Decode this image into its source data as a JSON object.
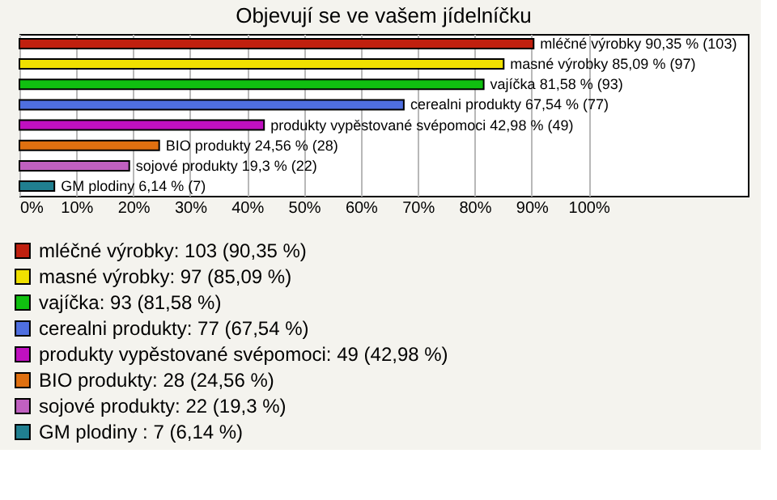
{
  "chart_data": {
    "type": "bar",
    "orientation": "horizontal",
    "title": "Objevují se ve vašem jídelníčku",
    "categories": [
      null,
      null,
      null,
      null,
      null,
      null,
      null,
      null
    ],
    "series": [
      {
        "name": "mléčné výrobky: 103 (90,35 %)",
        "color": "#c0200f",
        "values": [
          90.35,
          null,
          null,
          null,
          null,
          null,
          null,
          null
        ],
        "value_labels": [
          "mléčné výrobky 90,35 % (103)",
          null,
          null,
          null,
          null,
          null,
          null,
          null
        ]
      },
      {
        "name": "masné výrobky: 97 (85,09 %)",
        "color": "#f0e000",
        "values": [
          null,
          85.09,
          null,
          null,
          null,
          null,
          null,
          null
        ],
        "value_labels": [
          null,
          "masné výrobky 85,09 % (97)",
          null,
          null,
          null,
          null,
          null,
          null
        ]
      },
      {
        "name": "vajíčka: 93 (81,58 %)",
        "color": "#10c010",
        "values": [
          null,
          null,
          81.58,
          null,
          null,
          null,
          null,
          null
        ],
        "value_labels": [
          null,
          null,
          "vajíčka 81,58 % (93)",
          null,
          null,
          null,
          null,
          null
        ]
      },
      {
        "name": "cerealni produkty: 77 (67,54 %)",
        "color": "#4f6fe0",
        "values": [
          null,
          null,
          null,
          67.54,
          null,
          null,
          null,
          null
        ],
        "value_labels": [
          null,
          null,
          null,
          "cerealni produkty 67,54 % (77)",
          null,
          null,
          null,
          null
        ]
      },
      {
        "name": "produkty vypěstované svépomoci: 49 (42,98 %)",
        "color": "#c010c0",
        "values": [
          null,
          null,
          null,
          null,
          42.98,
          null,
          null,
          null
        ],
        "value_labels": [
          null,
          null,
          null,
          null,
          "produkty vypěstované svépomoci 42,98 % (49)",
          null,
          null,
          null
        ]
      },
      {
        "name": "BIO produkty: 28 (24,56 %)",
        "color": "#e07010",
        "values": [
          null,
          null,
          null,
          null,
          null,
          24.56,
          null,
          null
        ],
        "value_labels": [
          null,
          null,
          null,
          null,
          null,
          "BIO produkty 24,56 % (28)",
          null,
          null
        ]
      },
      {
        "name": "sojové produkty: 22 (19,3 %)",
        "color": "#c060c0",
        "values": [
          null,
          null,
          null,
          null,
          null,
          null,
          19.3,
          null
        ],
        "value_labels": [
          null,
          null,
          null,
          null,
          null,
          null,
          "sojové produkty 19,3 % (22)",
          null
        ]
      },
      {
        "name": "GM plodiny : 7 (6,14 %)",
        "color": "#207f90",
        "values": [
          null,
          null,
          null,
          null,
          null,
          null,
          null,
          6.14
        ],
        "value_labels": [
          null,
          null,
          null,
          null,
          null,
          null,
          null,
          "GM plodiny  6,14 % (7)"
        ]
      }
    ],
    "xlim": [
      0,
      128
    ],
    "xticks": [
      {
        "value": 0,
        "label": "0%"
      },
      {
        "value": 10,
        "label": "10%"
      },
      {
        "value": 20,
        "label": "20%"
      },
      {
        "value": 30,
        "label": "30%"
      },
      {
        "value": 40,
        "label": "40%"
      },
      {
        "value": 50,
        "label": "50%"
      },
      {
        "value": 60,
        "label": "60%"
      },
      {
        "value": 70,
        "label": "70%"
      },
      {
        "value": 80,
        "label": "80%"
      },
      {
        "value": 90,
        "label": "90%"
      },
      {
        "value": 100,
        "label": "100%"
      }
    ],
    "grid": "x",
    "tick_labels": "x",
    "legend": "bottom"
  }
}
